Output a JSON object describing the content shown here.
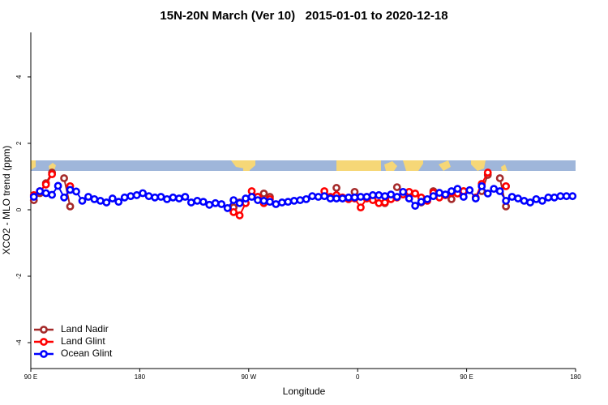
{
  "chart_data": {
    "type": "line",
    "title": "15N-20N March (Ver 10)   2015-01-01 to 2020-12-18",
    "x_label": "Longitude",
    "y_label": "XCO2 - MLO trend (ppm)",
    "xlim": [
      90,
      540
    ],
    "ylim": [
      -4.78,
      5.34
    ],
    "xticks": [
      {
        "value": 90,
        "label": "90 E"
      },
      180,
      {
        "value": 270,
        "label": "90 W"
      },
      {
        "value": 360,
        "label": "0"
      },
      {
        "value": 450,
        "label": "90 E"
      },
      {
        "value": 540,
        "label": "180"
      }
    ],
    "yticks": [
      -4,
      -2,
      0,
      2,
      4
    ],
    "legend": "bottom-left",
    "x": [
      92.5,
      97.5,
      102.5,
      107.5,
      112.5,
      117.5,
      122.5,
      127.5,
      132.5,
      137.5,
      142.5,
      147.5,
      152.5,
      157.5,
      162.5,
      167.5,
      172.5,
      177.5,
      182.5,
      187.5,
      192.5,
      197.5,
      202.5,
      207.5,
      212.5,
      217.5,
      222.5,
      227.5,
      232.5,
      237.5,
      242.5,
      247.5,
      252.5,
      257.5,
      262.5,
      267.5,
      272.5,
      277.5,
      282.5,
      287.5,
      292.5,
      297.5,
      302.5,
      307.5,
      312.5,
      317.5,
      322.5,
      327.5,
      332.5,
      337.5,
      342.5,
      347.5,
      352.5,
      357.5,
      362.5,
      367.5,
      372.5,
      377.5,
      382.5,
      387.5,
      392.5,
      397.5,
      402.5,
      407.5,
      412.5,
      417.5,
      422.5,
      427.5,
      432.5,
      437.5,
      442.5,
      447.5,
      452.5,
      457.5,
      462.5,
      467.5,
      472.5,
      477.5,
      482.5,
      487.5,
      492.5,
      497.5,
      502.5,
      507.5,
      512.5,
      517.5,
      522.5,
      527.5,
      532.5,
      537.5
    ],
    "series": [
      {
        "name": "Land Nadir",
        "color": "#a52a2a",
        "values": [
          0.29,
          0.5,
          0.8,
          1.12,
          null,
          0.95,
          0.1,
          null,
          null,
          null,
          null,
          null,
          null,
          null,
          null,
          null,
          null,
          null,
          null,
          null,
          null,
          null,
          null,
          null,
          null,
          null,
          null,
          null,
          null,
          null,
          null,
          null,
          null,
          0.07,
          0.22,
          null,
          null,
          0.39,
          0.49,
          0.39,
          null,
          null,
          null,
          null,
          null,
          null,
          null,
          null,
          null,
          null,
          0.66,
          null,
          null,
          0.54,
          null,
          0.39,
          null,
          null,
          0.2,
          null,
          0.68,
          null,
          0.51,
          null,
          0.22,
          null,
          0.56,
          null,
          null,
          0.32,
          null,
          0.56,
          null,
          null,
          0.56,
          1.05,
          null,
          0.95,
          0.1,
          null,
          null,
          null,
          null,
          null,
          null,
          null,
          null,
          null,
          null,
          null
        ]
      },
      {
        "name": "Land Glint",
        "color": "#ff0000",
        "values": [
          0.44,
          0.56,
          0.76,
          1.07,
          null,
          null,
          0.71,
          null,
          null,
          null,
          null,
          null,
          null,
          null,
          null,
          null,
          null,
          null,
          null,
          null,
          null,
          null,
          null,
          null,
          null,
          null,
          null,
          null,
          null,
          null,
          null,
          null,
          null,
          -0.07,
          -0.17,
          0.2,
          0.56,
          0.39,
          0.2,
          0.32,
          null,
          null,
          null,
          null,
          null,
          null,
          null,
          null,
          0.56,
          0.39,
          0.44,
          0.37,
          0.32,
          0.34,
          0.07,
          0.34,
          0.29,
          0.2,
          0.22,
          0.32,
          0.37,
          0.46,
          0.54,
          0.49,
          0.37,
          0.27,
          0.51,
          0.37,
          0.44,
          0.51,
          0.49,
          0.56,
          null,
          0.37,
          0.78,
          1.12,
          null,
          null,
          0.71,
          null,
          null,
          null,
          null,
          null,
          null,
          null,
          null,
          null,
          null,
          null
        ]
      },
      {
        "name": "Ocean Glint",
        "color": "#0000ff",
        "values": [
          0.39,
          0.56,
          0.5,
          0.45,
          0.72,
          0.37,
          0.6,
          0.55,
          0.27,
          0.39,
          0.32,
          0.27,
          0.22,
          0.34,
          0.24,
          0.37,
          0.41,
          0.44,
          0.5,
          0.41,
          0.37,
          0.39,
          0.32,
          0.37,
          0.34,
          0.39,
          0.22,
          0.27,
          0.24,
          0.15,
          0.2,
          0.17,
          0.05,
          0.29,
          0.2,
          0.34,
          0.39,
          0.29,
          0.27,
          0.24,
          0.17,
          0.22,
          0.24,
          0.27,
          0.29,
          0.32,
          0.41,
          0.39,
          0.41,
          0.34,
          0.34,
          0.34,
          0.37,
          0.37,
          0.39,
          0.39,
          0.44,
          0.44,
          0.41,
          0.46,
          0.39,
          0.54,
          0.34,
          0.12,
          0.24,
          0.32,
          0.41,
          0.51,
          0.46,
          0.56,
          0.63,
          0.39,
          0.59,
          0.34,
          0.71,
          0.49,
          0.63,
          0.56,
          0.27,
          0.39,
          0.34,
          0.27,
          0.22,
          0.32,
          0.27,
          0.37,
          0.37,
          0.41,
          0.41,
          0.41
        ]
      }
    ]
  }
}
